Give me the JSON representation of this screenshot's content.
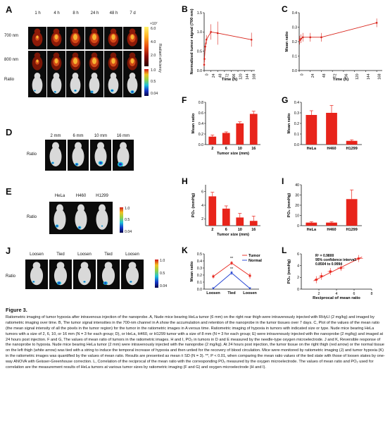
{
  "panels": {
    "A": {
      "label": "A",
      "times": [
        "1 h",
        "4 h",
        "8 h",
        "24 h",
        "48 h",
        "7 d"
      ],
      "rows": [
        "700 nm",
        "800 nm",
        "Ratio"
      ],
      "radiant_scale": {
        "exp": "×10⁷",
        "ticks": [
          "6.0",
          "4.0",
          "2.0"
        ],
        "title": "Radiant efficiency"
      },
      "ratio_scale": {
        "ticks": [
          "1.0",
          "0.5",
          "0.04"
        ]
      }
    },
    "D": {
      "label": "D",
      "sizes": [
        "2 mm",
        "6 mm",
        "10 mm",
        "16 mm"
      ],
      "row": "Ratio"
    },
    "E": {
      "label": "E",
      "lines": [
        "HeLa",
        "H460",
        "H1299"
      ],
      "row": "Ratio",
      "scale": {
        "ticks": [
          "1.0",
          "0.5",
          "0.04"
        ]
      }
    },
    "J": {
      "label": "J",
      "states": [
        "Loosen",
        "Tied",
        "Loosen",
        "Tied",
        "Loosen"
      ],
      "row": "Ratio",
      "scale": {
        "ticks": [
          "1.0",
          "0.5",
          "0.04"
        ]
      }
    }
  },
  "chart_data": [
    {
      "id": "B",
      "type": "line",
      "panel_label": "B",
      "x": [
        0,
        1,
        4,
        8,
        24,
        48,
        168
      ],
      "y": [
        0.15,
        0.3,
        0.62,
        0.8,
        1.0,
        0.97,
        0.8
      ],
      "err": [
        0.05,
        0.08,
        0.1,
        0.12,
        0.2,
        0.3,
        0.18
      ],
      "xlabel": "Time (h)",
      "ylabel": "Normalized tumor signal (700 nm)",
      "xlim": [
        0,
        180
      ],
      "ylim": [
        0,
        1.5
      ],
      "xticks": [
        0,
        24,
        48,
        72,
        96,
        120,
        144,
        168
      ],
      "yticks": [
        0.0,
        0.5,
        1.0,
        1.5
      ],
      "color": "#d9241b"
    },
    {
      "id": "C",
      "type": "line",
      "panel_label": "C",
      "x": [
        1,
        4,
        8,
        24,
        48,
        168
      ],
      "y": [
        0.21,
        0.22,
        0.23,
        0.23,
        0.23,
        0.33
      ],
      "err": [
        0.03,
        0.03,
        0.03,
        0.03,
        0.03,
        0.03
      ],
      "xlabel": "Time (h)",
      "ylabel": "Mean ratio",
      "xlim": [
        0,
        180
      ],
      "ylim": [
        0.0,
        0.4
      ],
      "xticks": [
        0,
        24,
        48,
        72,
        96,
        120,
        144,
        168
      ],
      "yticks": [
        0.0,
        0.1,
        0.2,
        0.3,
        0.4
      ],
      "color": "#d9241b"
    },
    {
      "id": "F",
      "type": "bar",
      "panel_label": "F",
      "categories": [
        "2",
        "6",
        "10",
        "16"
      ],
      "values": [
        0.15,
        0.22,
        0.4,
        0.58
      ],
      "err": [
        0.03,
        0.02,
        0.03,
        0.05
      ],
      "xlabel": "Tumor size (mm)",
      "ylabel": "Mean ratio",
      "ylim": [
        0.0,
        0.8
      ],
      "yticks": [
        0.0,
        0.2,
        0.4,
        0.6,
        0.8
      ],
      "color": "#e8241b"
    },
    {
      "id": "G",
      "type": "bar",
      "panel_label": "G",
      "categories": [
        "HeLa",
        "H460",
        "H1299"
      ],
      "values": [
        0.28,
        0.3,
        0.035
      ],
      "err": [
        0.04,
        0.07,
        0.01
      ],
      "xlabel": "",
      "ylabel": "Mean ratio",
      "ylim": [
        0.0,
        0.4
      ],
      "yticks": [
        0.0,
        0.1,
        0.2,
        0.3,
        0.4
      ],
      "color": "#e8241b"
    },
    {
      "id": "H",
      "type": "bar",
      "panel_label": "H",
      "categories": [
        "2",
        "6",
        "10",
        "16"
      ],
      "values": [
        5.3,
        3.5,
        2.2,
        1.7
      ],
      "err": [
        0.6,
        0.4,
        0.6,
        0.7
      ],
      "xlabel": "Tumor size (mm)",
      "ylabel": "PO₂ (mmHg)",
      "ylim": [
        1,
        7
      ],
      "yticks": [
        2,
        4,
        6
      ],
      "color": "#e8241b"
    },
    {
      "id": "I",
      "type": "bar",
      "panel_label": "I",
      "categories": [
        "HeLa",
        "H460",
        "H1299"
      ],
      "values": [
        3,
        3,
        26
      ],
      "err": [
        0.8,
        0.8,
        9
      ],
      "xlabel": "",
      "ylabel": "PO₂ (mmHg)",
      "ylim": [
        0,
        40
      ],
      "yticks": [
        0,
        10,
        20,
        30,
        40
      ],
      "color": "#e8241b"
    },
    {
      "id": "K",
      "type": "line",
      "panel_label": "K",
      "categories": [
        "Loosen",
        "Tied",
        "Loosen"
      ],
      "series": [
        {
          "name": "Tumor",
          "values": [
            0.18,
            0.37,
            0.19
          ],
          "err": [
            0.03,
            0.03,
            0.04
          ],
          "color": "#e8241b"
        },
        {
          "name": "Normal",
          "values": [
            0.01,
            0.23,
            0.01
          ],
          "err": [
            0.01,
            0.03,
            0.01
          ],
          "color": "#1f3fd1"
        }
      ],
      "annotations": [
        "**",
        "**"
      ],
      "ylabel": "Mean ratio",
      "ylim": [
        0.0,
        0.5
      ],
      "yticks": [
        0.0,
        0.1,
        0.2,
        0.3,
        0.4,
        0.5
      ],
      "legend": "top-right"
    },
    {
      "id": "L",
      "type": "scatter",
      "panel_label": "L",
      "x": [
        1.7,
        2.3,
        3.3,
        4.5,
        6.5
      ],
      "y": [
        1.6,
        2.2,
        3.0,
        3.6,
        5.2
      ],
      "xerr": [
        0.2,
        0.3,
        0.3,
        0.4,
        0.5
      ],
      "yerr": [
        0.6,
        0.6,
        0.6,
        0.5,
        0.6
      ],
      "fit": {
        "slope": 0.74,
        "intercept": 0.37
      },
      "xlabel": "Reciprocal of mean ratio",
      "ylabel": "PO₂ (mmHg)",
      "xlim": [
        0,
        8
      ],
      "ylim": [
        0,
        6
      ],
      "xticks": [
        2,
        4,
        6,
        8
      ],
      "yticks": [
        0,
        2,
        4,
        6
      ],
      "annotation_lines": [
        "R² = 0.9800",
        "95% confidence interval:",
        "0.8504 to 0.9994"
      ],
      "color": "#e8241b"
    }
  ],
  "caption": {
    "title": "Figure 3.",
    "body": "Ratiometric imaging of tumor hypoxia after intravenous injection of the nanoprobe. A, Nude mice bearing HeLa tumor (6 mm) on the right rear thigh were intravenously injected with RHyLI (2 mg/kg) and imaged by ratiometric imaging over time. B, The tumor signal intensities in the 700-nm channel in A show the accumulation and retention of the nanoprobe in the tumor tissues over 7 days. C, Plot of the values of the mean ratio (the mean signal intensity of all the pixels in the tumor region) for the tumor in the ratiometric images in A versus time. Ratiometric imaging of hypoxia in tumors with indicated size or type. Nude mice bearing HeLa tumors with a size of 2, 6, 10, or 16 mm (N = 3 for each group; D), or HeLa, H460, or H1299 tumor with a size of 8 mm (N = 3 for each group; E) were intravenously injected with the nanoprobe (2 mg/kg) and imaged at 24 hours post injection. F and G, The values of mean ratio of tumors in the ratiometric images. H and I, PO₂ in tumors in D and E measured by the needle-type oxygen microelectrode. J and K, Reversible response of the nanoprobe to hypoxia. Nude mice bearing HeLa tumor (2 mm) were intravenously injected with the nanoprobe (2 mg/kg). At 24 hours post injection, the tumor tissue on the right thigh (red arrow) or the normal tissue on the left thigh (white arrow) was tied with a string to induce the temporal increase of hypoxia and then untied for the recovery of blood circulation. Mice were monitored by ratiometric imaging (J) and tumor hypoxia (K) in the ratiometric images was quantified by the values of mean ratio. Results are presented as mean ± SD (N = 3). **, P < 0.01, when comparing the mean ratio values of the tied state with those of loosen states by one-way ANOVA with Geisser-Greenhouse correction. L, Correlation of the reciprocal of the mean ratio with the corresponding PO₂ measured by the oxygen microelectrode. The values of mean ratio and PO₂ used for correlation are the measurement results of HeLa tumors at various tumor sizes by ratiometric imaging (F and G) and oxygen microelectrode (H and I)."
  }
}
